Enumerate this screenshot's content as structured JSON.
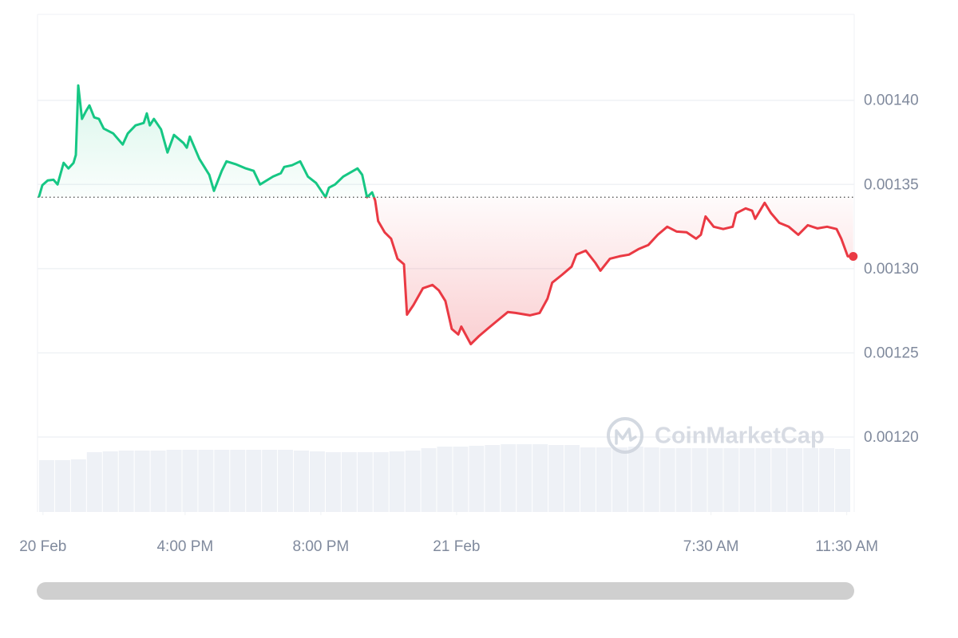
{
  "chart_data": {
    "type": "line",
    "watermark": "CoinMarketCap",
    "baseline": 0.0013424,
    "up_color": "#16c784",
    "down_color": "#ea3943",
    "grid": true,
    "xlim": [
      11.65,
      35.72
    ],
    "xticks": [
      {
        "value": 11.81,
        "label": "20 Feb"
      },
      {
        "value": 16,
        "label": "4:00 PM"
      },
      {
        "value": 20,
        "label": "8:00 PM"
      },
      {
        "value": 24,
        "label": "21 Feb"
      },
      {
        "value": 31.5,
        "label": "7:30 AM"
      },
      {
        "value": 35.5,
        "label": "11:30 AM"
      }
    ],
    "ylim": [
      0.0011555,
      0.001451
    ],
    "yticks": [
      {
        "value": 0.0012,
        "label": "0.00120"
      },
      {
        "value": 0.00125,
        "label": "0.00125"
      },
      {
        "value": 0.0013,
        "label": "0.00130"
      },
      {
        "value": 0.00135,
        "label": "0.00135"
      },
      {
        "value": 0.0014,
        "label": "0.00140"
      }
    ],
    "x": [
      11.69,
      11.79,
      11.95,
      12.12,
      12.24,
      12.42,
      12.56,
      12.71,
      12.78,
      12.85,
      12.96,
      13.08,
      13.18,
      13.32,
      13.46,
      13.6,
      13.88,
      14.16,
      14.31,
      14.54,
      14.78,
      14.87,
      14.96,
      15.08,
      15.29,
      15.48,
      15.67,
      15.95,
      16.05,
      16.14,
      16.42,
      16.71,
      16.85,
      17.08,
      17.22,
      17.51,
      17.79,
      18.02,
      18.21,
      18.59,
      18.82,
      18.92,
      19.15,
      19.39,
      19.62,
      19.86,
      20.14,
      20.24,
      20.42,
      20.66,
      21.08,
      21.22,
      21.36,
      21.51,
      21.6,
      21.69,
      21.88,
      22.07,
      22.26,
      22.45,
      22.54,
      22.73,
      23.01,
      23.29,
      23.48,
      23.67,
      23.86,
      24.05,
      24.14,
      24.42,
      24.66,
      24.94,
      25.22,
      25.51,
      25.74,
      26.16,
      26.45,
      26.68,
      26.82,
      27.11,
      27.39,
      27.53,
      27.81,
      28.09,
      28.24,
      28.52,
      28.8,
      29.08,
      29.36,
      29.65,
      29.93,
      30.21,
      30.49,
      30.78,
      31.06,
      31.2,
      31.34,
      31.58,
      31.86,
      32.14,
      32.24,
      32.52,
      32.71,
      32.8,
      33.08,
      33.27,
      33.51,
      33.79,
      34.07,
      34.35,
      34.64,
      34.92,
      35.2,
      35.34,
      35.53,
      35.69
    ],
    "values": [
      0.0013424,
      0.0013495,
      0.0013524,
      0.0013528,
      0.00135,
      0.0013628,
      0.0013595,
      0.0013628,
      0.0013675,
      0.0014088,
      0.0013889,
      0.0013936,
      0.0013969,
      0.0013898,
      0.0013889,
      0.0013832,
      0.0013803,
      0.0013737,
      0.0013803,
      0.0013851,
      0.0013865,
      0.0013922,
      0.0013851,
      0.0013889,
      0.0013827,
      0.001369,
      0.0013794,
      0.0013746,
      0.0013718,
      0.0013784,
      0.0013652,
      0.0013557,
      0.0013462,
      0.0013581,
      0.0013637,
      0.0013619,
      0.0013595,
      0.0013581,
      0.00135,
      0.0013547,
      0.0013566,
      0.0013604,
      0.0013614,
      0.0013637,
      0.0013547,
      0.0013509,
      0.0013424,
      0.0013481,
      0.00135,
      0.0013547,
      0.0013595,
      0.0013557,
      0.0013424,
      0.0013453,
      0.0013405,
      0.0013282,
      0.0013216,
      0.0013178,
      0.0013059,
      0.0013026,
      0.0012727,
      0.0012784,
      0.0012884,
      0.0012903,
      0.001287,
      0.0012808,
      0.0012642,
      0.0012609,
      0.0012656,
      0.0012552,
      0.0012599,
      0.0012647,
      0.0012694,
      0.0012742,
      0.0012737,
      0.0012723,
      0.0012737,
      0.0012822,
      0.0012917,
      0.0012964,
      0.0013012,
      0.0013083,
      0.0013107,
      0.0013035,
      0.0012988,
      0.0013059,
      0.0013073,
      0.0013083,
      0.0013116,
      0.001314,
      0.0013201,
      0.0013249,
      0.001322,
      0.0013216,
      0.0013178,
      0.0013201,
      0.001331,
      0.0013249,
      0.0013235,
      0.0013249,
      0.0013329,
      0.0013358,
      0.0013344,
      0.0013296,
      0.0013391,
      0.0013329,
      0.0013272,
      0.0013249,
      0.0013201,
      0.0013258,
      0.0013239,
      0.0013249,
      0.0013235,
      0.0013178,
      0.0013073,
      0.0013073
    ],
    "volume": {
      "color": "#eef1f6",
      "values": [
        65,
        65,
        66,
        75,
        76,
        77,
        77,
        77,
        78,
        78,
        78,
        78,
        78,
        78,
        78,
        78,
        77,
        76,
        75,
        75,
        75,
        75,
        76,
        77,
        80,
        82,
        82,
        83,
        84,
        85,
        85,
        85,
        84,
        84,
        81,
        81,
        81,
        82,
        81,
        80,
        80,
        80,
        80,
        80,
        80,
        80,
        80,
        80,
        80,
        80,
        79
      ]
    }
  }
}
